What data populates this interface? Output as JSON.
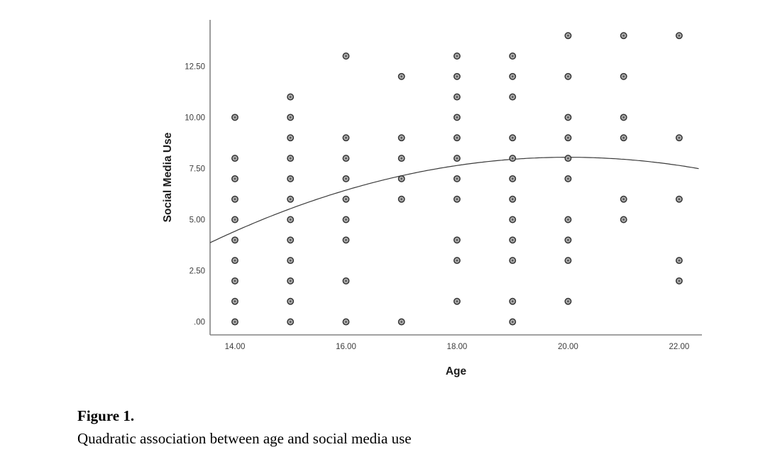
{
  "page": {
    "background": "#ffffff"
  },
  "caption": {
    "label": "Figure 1.",
    "text": "Quadratic association between age and social media use"
  },
  "chart_data": {
    "type": "scatter",
    "xlabel": "Age",
    "ylabel": "Social Media Use",
    "x_ticks": [
      {
        "value": 14,
        "label": "14.00"
      },
      {
        "value": 16,
        "label": "16.00"
      },
      {
        "value": 18,
        "label": "18.00"
      },
      {
        "value": 20,
        "label": "20.00"
      },
      {
        "value": 22,
        "label": "22.00"
      }
    ],
    "y_ticks": [
      {
        "value": 0,
        "label": ".00"
      },
      {
        "value": 2.5,
        "label": "2.50"
      },
      {
        "value": 5,
        "label": "5.00"
      },
      {
        "value": 7.5,
        "label": "7.50"
      },
      {
        "value": 10,
        "label": "10.00"
      },
      {
        "value": 12.5,
        "label": "12.50"
      }
    ],
    "xlim": [
      13.553,
      22.41
    ],
    "ylim": [
      -0.64,
      14.77
    ],
    "grid": false,
    "legend": "none",
    "axis_color": "#848484",
    "text_color": "#3d3d3d",
    "curve_color": "#3a3a3a",
    "marker": {
      "fill": "#aeaeae",
      "stroke": "#343434",
      "core": "#555555",
      "radius": 4.2
    },
    "groups": [
      {
        "age": 14,
        "values": [
          0,
          1,
          2,
          3,
          4,
          5,
          6,
          7,
          8,
          10
        ]
      },
      {
        "age": 15,
        "values": [
          0,
          1,
          2,
          3,
          4,
          5,
          6,
          7,
          8,
          9,
          10,
          11
        ]
      },
      {
        "age": 16,
        "values": [
          0,
          2,
          4,
          5,
          6,
          7,
          8,
          9,
          13
        ]
      },
      {
        "age": 17,
        "values": [
          0,
          6,
          7,
          8,
          9,
          12
        ]
      },
      {
        "age": 18,
        "values": [
          1,
          3,
          4,
          6,
          7,
          8,
          9,
          10,
          11,
          12,
          13
        ]
      },
      {
        "age": 19,
        "values": [
          0,
          1,
          3,
          4,
          5,
          6,
          7,
          8,
          9,
          11,
          12,
          13
        ]
      },
      {
        "age": 20,
        "values": [
          1,
          3,
          4,
          5,
          7,
          8,
          9,
          10,
          12,
          14
        ]
      },
      {
        "age": 21,
        "values": [
          5,
          6,
          9,
          10,
          12,
          14
        ]
      },
      {
        "age": 22,
        "values": [
          2,
          3,
          6,
          9,
          14
        ]
      }
    ],
    "fit_curve": {
      "type": "quadratic",
      "peak_x": 20,
      "peak_y": 8.05,
      "a": -0.1006,
      "x_range": [
        13.553,
        22.4
      ]
    }
  }
}
